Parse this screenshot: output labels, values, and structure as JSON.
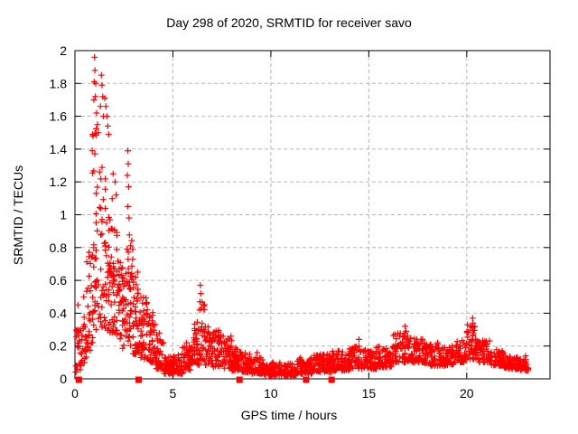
{
  "page": {
    "background": "#ffffff",
    "border_color": "#000000",
    "grid_color": "#b6b6b6",
    "text_color": "#000000",
    "marker_color": "#ff0000"
  },
  "chart_data": {
    "type": "scatter",
    "title": "Day 298 of 2020, SRMTID for receiver savo",
    "xlabel": "GPS time / hours",
    "ylabel": "SRMTID / TECUs",
    "xlim": [
      0,
      24.25
    ],
    "ylim": [
      0,
      2
    ],
    "xticks": {
      "values": [
        0,
        5,
        10,
        15,
        20
      ],
      "labels": [
        "0",
        "5",
        "10",
        "15",
        "20"
      ]
    },
    "yticks": {
      "values": [
        0,
        0.2,
        0.4,
        0.6,
        0.8,
        1,
        1.2,
        1.4,
        1.6,
        1.8,
        2
      ],
      "labels": [
        "0",
        "0.2",
        "0.4",
        "0.6",
        "0.8",
        "1",
        "1.2",
        "1.4",
        "1.6",
        "1.8",
        "2"
      ]
    },
    "grid": true,
    "legend": "none",
    "series": [
      {
        "name": "SRMTID",
        "marker": "plus",
        "color": "#ff0000",
        "comment_envelope_bands": "dense scatter summarized as [t_start_h, t_end_h, n_points, y_min, y_max] read from the pixels",
        "envelope_bands": [
          [
            0.0,
            0.3,
            22,
            0.04,
            0.3
          ],
          [
            0.3,
            0.6,
            22,
            0.07,
            0.42
          ],
          [
            0.6,
            0.9,
            28,
            0.15,
            0.8
          ],
          [
            0.9,
            1.2,
            34,
            0.25,
            1.55
          ],
          [
            1.2,
            1.55,
            36,
            0.3,
            1.3
          ],
          [
            1.55,
            1.9,
            38,
            0.28,
            1.1
          ],
          [
            1.9,
            2.25,
            42,
            0.25,
            0.95
          ],
          [
            2.25,
            2.6,
            40,
            0.18,
            0.72
          ],
          [
            2.6,
            2.95,
            44,
            0.2,
            0.88
          ],
          [
            2.95,
            3.35,
            44,
            0.15,
            0.6
          ],
          [
            3.35,
            3.75,
            42,
            0.12,
            0.5
          ],
          [
            3.75,
            4.15,
            42,
            0.1,
            0.42
          ],
          [
            4.15,
            4.55,
            40,
            0.06,
            0.28
          ],
          [
            4.55,
            5.0,
            46,
            0.03,
            0.14
          ],
          [
            5.0,
            5.5,
            48,
            0.03,
            0.16
          ],
          [
            5.5,
            6.0,
            48,
            0.05,
            0.22
          ],
          [
            6.0,
            6.35,
            36,
            0.08,
            0.35
          ],
          [
            6.35,
            6.65,
            30,
            0.1,
            0.5
          ],
          [
            6.65,
            7.0,
            34,
            0.08,
            0.32
          ],
          [
            7.0,
            7.5,
            46,
            0.07,
            0.3
          ],
          [
            7.5,
            8.0,
            48,
            0.06,
            0.26
          ],
          [
            8.0,
            8.5,
            48,
            0.05,
            0.2
          ],
          [
            8.5,
            9.0,
            48,
            0.04,
            0.16
          ],
          [
            9.0,
            9.6,
            54,
            0.03,
            0.13
          ],
          [
            9.6,
            10.4,
            70,
            0.02,
            0.1
          ],
          [
            10.4,
            11.3,
            76,
            0.02,
            0.1
          ],
          [
            11.3,
            12.2,
            76,
            0.03,
            0.13
          ],
          [
            12.2,
            13.1,
            76,
            0.04,
            0.15
          ],
          [
            13.1,
            14.0,
            74,
            0.05,
            0.17
          ],
          [
            14.0,
            14.6,
            50,
            0.06,
            0.2
          ],
          [
            14.6,
            15.4,
            64,
            0.06,
            0.18
          ],
          [
            15.4,
            16.2,
            64,
            0.07,
            0.2
          ],
          [
            16.2,
            17.0,
            64,
            0.1,
            0.28
          ],
          [
            17.0,
            17.8,
            64,
            0.1,
            0.25
          ],
          [
            17.8,
            18.6,
            64,
            0.08,
            0.22
          ],
          [
            18.6,
            19.4,
            64,
            0.08,
            0.2
          ],
          [
            19.4,
            20.0,
            48,
            0.1,
            0.24
          ],
          [
            20.0,
            20.55,
            44,
            0.12,
            0.33
          ],
          [
            20.55,
            21.2,
            52,
            0.1,
            0.24
          ],
          [
            21.2,
            21.9,
            56,
            0.08,
            0.18
          ],
          [
            21.9,
            22.6,
            56,
            0.06,
            0.14
          ],
          [
            22.6,
            23.15,
            44,
            0.05,
            0.12
          ]
        ],
        "peak_points": [
          [
            1.0,
            1.96
          ],
          [
            1.02,
            1.88
          ],
          [
            0.98,
            1.81
          ],
          [
            1.06,
            1.8
          ],
          [
            1.04,
            1.72
          ],
          [
            0.97,
            1.7
          ],
          [
            1.1,
            1.62
          ],
          [
            1.15,
            1.55
          ],
          [
            1.2,
            1.5
          ],
          [
            1.35,
            1.85
          ],
          [
            1.38,
            1.79
          ],
          [
            1.42,
            1.72
          ],
          [
            1.3,
            1.66
          ],
          [
            1.45,
            1.6
          ],
          [
            1.52,
            1.71
          ],
          [
            1.58,
            1.66
          ],
          [
            1.63,
            1.6
          ],
          [
            1.68,
            1.54
          ],
          [
            1.72,
            1.49
          ],
          [
            0.9,
            1.49
          ],
          [
            0.92,
            1.48
          ],
          [
            0.88,
            1.39
          ],
          [
            1.95,
            1.25
          ],
          [
            2.05,
            1.2
          ],
          [
            2.1,
            1.12
          ],
          [
            2.7,
            1.39
          ],
          [
            2.72,
            1.31
          ],
          [
            2.68,
            1.24
          ],
          [
            2.74,
            1.17
          ],
          [
            2.7,
            1.05
          ],
          [
            2.76,
            0.98
          ],
          [
            3.1,
            0.62
          ],
          [
            3.2,
            0.65
          ],
          [
            6.4,
            0.57
          ],
          [
            6.42,
            0.52
          ],
          [
            6.38,
            0.47
          ],
          [
            6.44,
            0.43
          ],
          [
            9.3,
            0.16
          ],
          [
            14.5,
            0.24
          ],
          [
            16.85,
            0.32
          ],
          [
            16.9,
            0.29
          ],
          [
            20.3,
            0.37
          ],
          [
            20.32,
            0.34
          ],
          [
            20.28,
            0.31
          ],
          [
            20.34,
            0.28
          ],
          [
            0.15,
            0.45
          ],
          [
            0.45,
            0.5
          ],
          [
            23.0,
            0.14
          ]
        ]
      },
      {
        "name": "flags",
        "marker": "filled-square",
        "color": "#ff0000",
        "points": [
          [
            0.2,
            0
          ],
          [
            3.25,
            0
          ],
          [
            8.4,
            0
          ],
          [
            11.8,
            0
          ],
          [
            13.1,
            0
          ]
        ]
      }
    ]
  },
  "layout_note": "static chart image; no interactive widgets visible"
}
